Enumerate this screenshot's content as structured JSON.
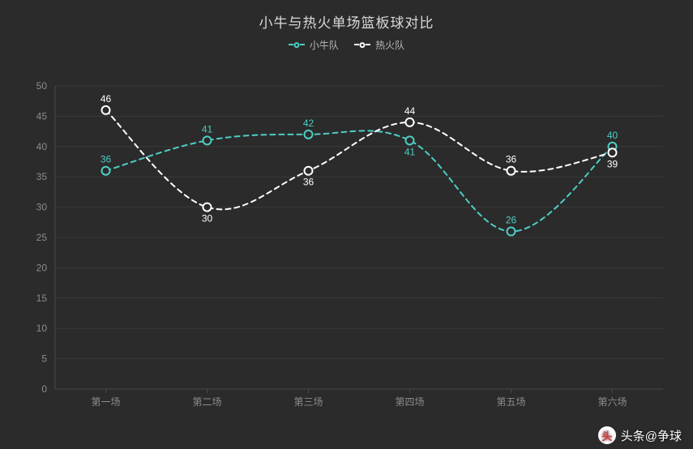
{
  "chart": {
    "type": "line",
    "title": "小牛与热火单场篮板球对比",
    "title_fontsize": 17,
    "title_color": "#d8d8d8",
    "background_color": "#2b2b2b",
    "grid_color": "#3a3a3a",
    "axis_line_color": "#4a4a4a",
    "tick_label_color": "#8c8c8c",
    "tick_fontsize": 12,
    "ylim": [
      0,
      50
    ],
    "ytick_step": 5,
    "categories": [
      "第一场",
      "第二场",
      "第三场",
      "第四场",
      "第五场",
      "第六场"
    ],
    "smooth": true,
    "line_style": "dashed",
    "line_width": 2,
    "marker_radius": 5,
    "marker_fill": "#2b2b2b",
    "label_fontsize": 12,
    "series": [
      {
        "name": "小牛队",
        "color": "#4ecdc4",
        "values": [
          36,
          41,
          42,
          41,
          26,
          40
        ],
        "label_positions": [
          "above",
          "above",
          "above",
          "below",
          "above",
          "above"
        ]
      },
      {
        "name": "热火队",
        "color": "#ffffff",
        "values": [
          46,
          30,
          36,
          44,
          36,
          39
        ],
        "label_positions": [
          "above",
          "below",
          "below",
          "above",
          "above",
          "below"
        ]
      }
    ],
    "legend": {
      "position": "top-center",
      "item_color": "#b8b8b8",
      "fontsize": 12
    }
  },
  "watermark": {
    "logo_text": "头",
    "label": "头条@争球",
    "text_color": "#ffffff",
    "logo_bg": "#ffffff",
    "logo_fg": "#e23b3b"
  }
}
